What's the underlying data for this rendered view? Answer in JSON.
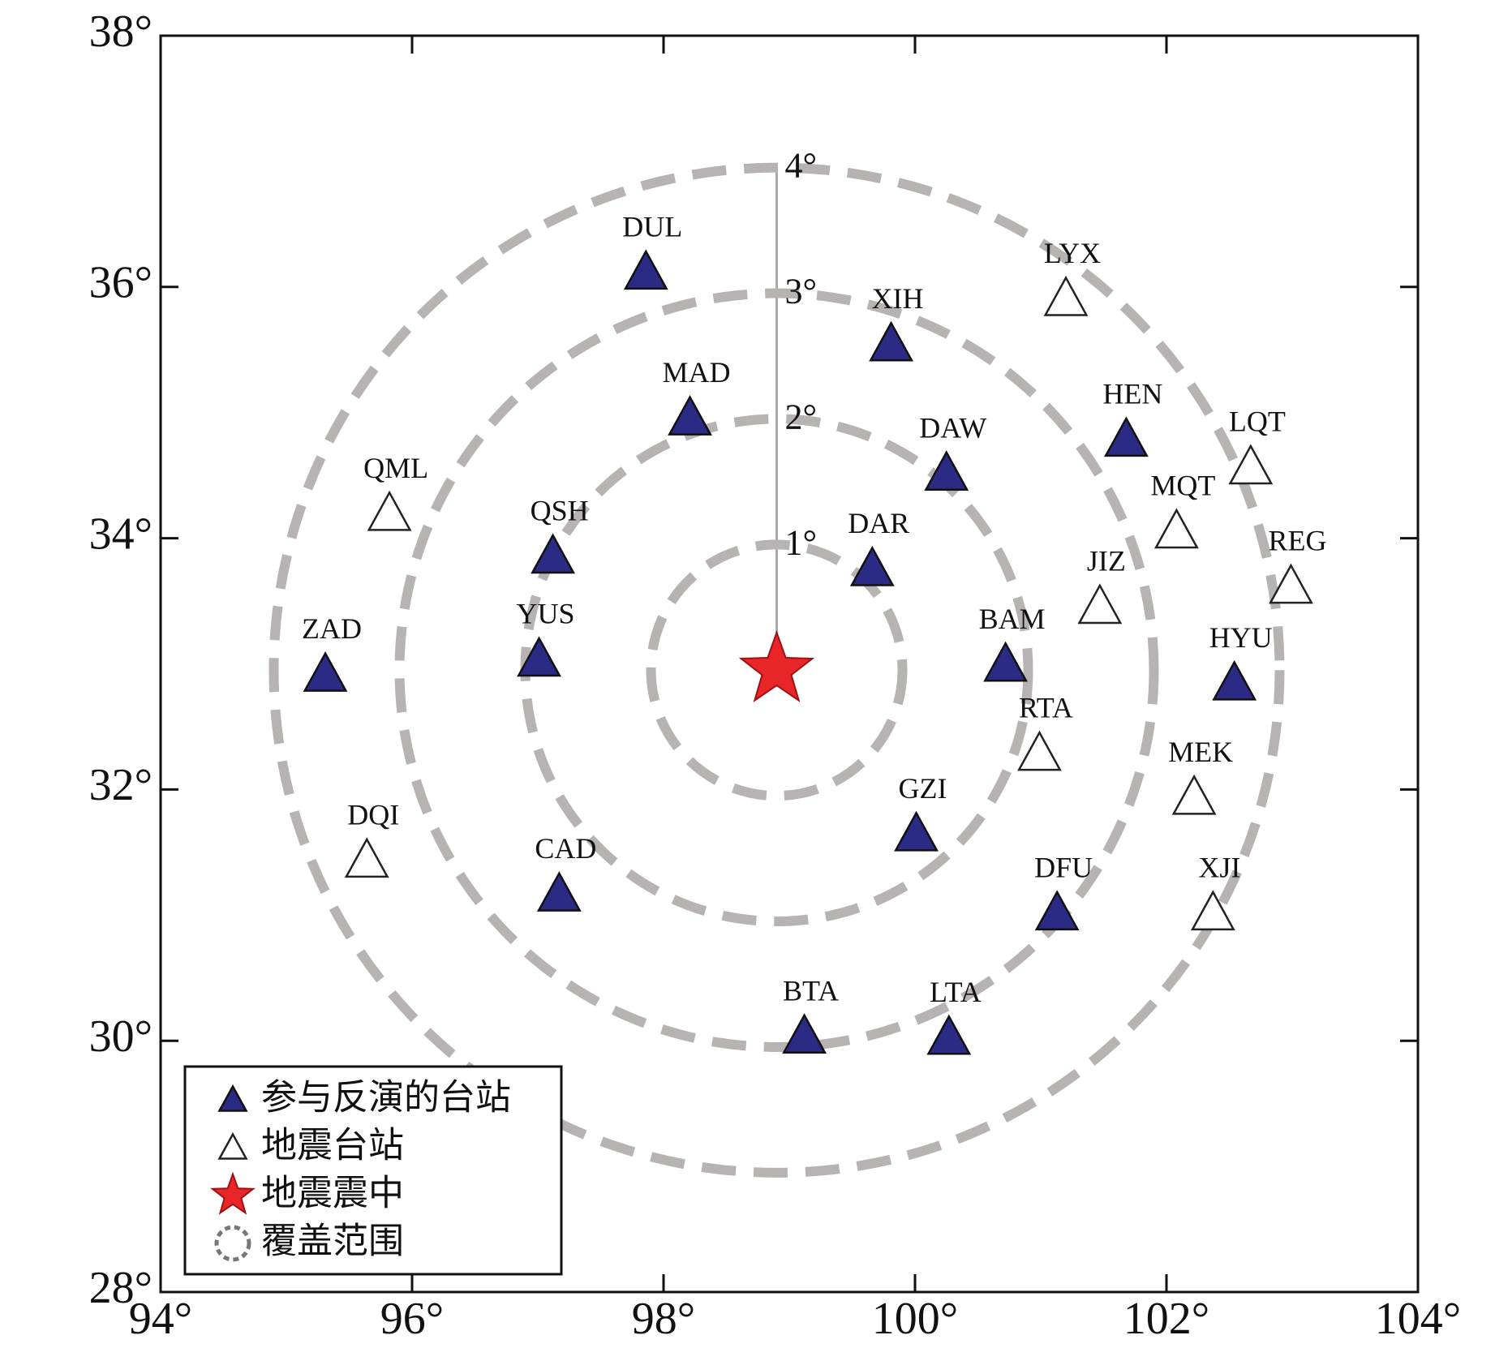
{
  "chart_data": {
    "type": "scatter",
    "xlim": [
      94,
      104
    ],
    "ylim": [
      28,
      38
    ],
    "xticks": [
      {
        "value": 94,
        "label": "94°"
      },
      {
        "value": 96,
        "label": "96°"
      },
      {
        "value": 98,
        "label": "98°"
      },
      {
        "value": 100,
        "label": "100°"
      },
      {
        "value": 102,
        "label": "102°"
      },
      {
        "value": 104,
        "label": "104°"
      }
    ],
    "yticks": [
      {
        "value": 28,
        "label": "28°"
      },
      {
        "value": 30,
        "label": "30°"
      },
      {
        "value": 32,
        "label": "32°"
      },
      {
        "value": 34,
        "label": "34°"
      },
      {
        "value": 36,
        "label": "36°"
      },
      {
        "value": 38,
        "label": "38°"
      }
    ],
    "legend": "lower left",
    "series": [
      {
        "name": "参与反演的台站",
        "color": "#2b2b86",
        "marker": "filled-triangle",
        "labels": [
          "DUL",
          "XIH",
          "MAD",
          "DAW",
          "HEN",
          "QSH",
          "DAR",
          "YUS",
          "ZAD",
          "BAM",
          "HYU",
          "GZI",
          "CAD",
          "DFU",
          "BTA",
          "LTA"
        ],
        "x": [
          97.86,
          99.81,
          98.21,
          100.25,
          101.68,
          97.12,
          99.66,
          97.01,
          95.31,
          100.72,
          102.54,
          100.01,
          97.17,
          101.13,
          99.12,
          100.27
        ],
        "y": [
          36.12,
          35.55,
          34.96,
          34.52,
          34.79,
          33.86,
          33.76,
          33.04,
          32.92,
          33.0,
          32.85,
          31.65,
          31.17,
          31.02,
          30.04,
          30.03
        ]
      },
      {
        "name": "地震台站",
        "color": "#222222",
        "marker": "hollow-triangle",
        "labels": [
          "LYX",
          "LQT",
          "MQT",
          "REG",
          "JIZ",
          "QML",
          "RTA",
          "MEK",
          "XJI",
          "DQI"
        ],
        "x": [
          101.2,
          102.67,
          102.08,
          102.99,
          101.47,
          95.82,
          100.99,
          102.22,
          102.37,
          95.64
        ],
        "y": [
          35.91,
          34.57,
          34.06,
          33.62,
          33.46,
          34.2,
          32.29,
          31.94,
          31.02,
          31.44
        ]
      },
      {
        "name": "地震震中",
        "color": "#e8262a",
        "marker": "star",
        "x": [
          98.9
        ],
        "y": [
          32.95
        ]
      }
    ],
    "rings": {
      "name": "覆盖范围",
      "color": "#b8b3b3",
      "radii": [
        1,
        2,
        3,
        4
      ],
      "labels": [
        "1°",
        "2°",
        "3°",
        "4°"
      ]
    }
  }
}
